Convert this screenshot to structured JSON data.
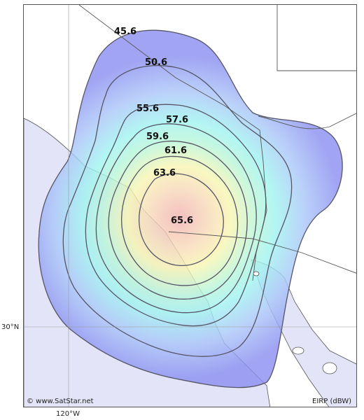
{
  "map": {
    "lat_label": "30°N",
    "lon_label": "120°W",
    "credit": "© www.SatStar.net",
    "units": "EIRP (dBW)"
  },
  "contours": [
    {
      "label": "45.6"
    },
    {
      "label": "50.6"
    },
    {
      "label": "55.6"
    },
    {
      "label": "57.6"
    },
    {
      "label": "59.6"
    },
    {
      "label": "61.6"
    },
    {
      "label": "63.6"
    },
    {
      "label": "65.6"
    }
  ],
  "colors": {
    "land": "#ffffff",
    "sea": "#e4e4f8",
    "border": "#555555",
    "contour_line": "#555566",
    "beam_outer": "#8a8ef0",
    "beam_mid": "#9ff3f0",
    "beam_inner": "#f8f5b0",
    "beam_center": "#f0b0b0"
  }
}
